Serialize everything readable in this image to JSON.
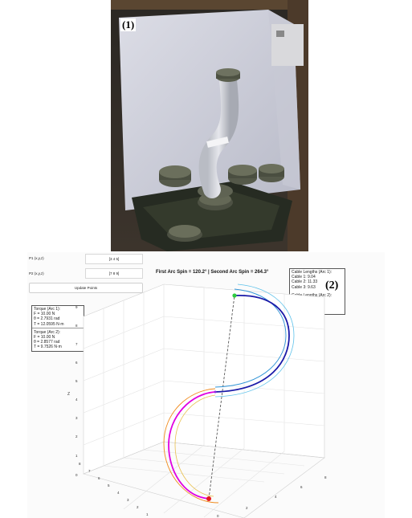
{
  "photo_panel": {
    "label": "(1)"
  },
  "plot_panel": {
    "label": "(2)",
    "inputs": [
      {
        "label": "P1 (x,y,z)",
        "value": "[3 4 5]"
      },
      {
        "label": "P2 (x,y,z)",
        "value": "[7 8 9]"
      }
    ],
    "update_button": "Update Points",
    "title": "First Arc Spin = 120.2°   |   Second Arc Spin = 264.3°",
    "torque_arc1": {
      "heading": "Torque (Arc 1):",
      "lines": [
        "F = 10.00 N",
        "θ = 2.7931 rad",
        "T = 12.0595 N·m"
      ]
    },
    "torque_arc2": {
      "heading": "Torque (Arc 2):",
      "lines": [
        "F = 10.00 N",
        "θ = 2.8577 rad",
        "T = 9.7526 N·m"
      ]
    },
    "cable_arc1": {
      "heading": "Cable Lengths (Arc 1):",
      "lines": [
        "Cable 1: 9.04",
        "Cable 2: 11.33",
        "Cable 3: 9.63"
      ]
    },
    "cable_arc2": {
      "heading": "Cable Lengths (Arc 2):",
      "lines": [
        "Cable 1: 10.76",
        "Cable 2: 8.63",
        "Cable 3: 10.67"
      ]
    },
    "axis": {
      "z_label": "Z",
      "z_ticks": [
        "0",
        "1",
        "2",
        "3",
        "4",
        "5",
        "6",
        "7",
        "8",
        "9"
      ],
      "y_ticks": [
        "1",
        "2",
        "3",
        "4",
        "5",
        "6",
        "7",
        "8"
      ],
      "x_ticks": [
        "0",
        "2",
        "4",
        "6",
        "8"
      ]
    },
    "colors": {
      "arc1_main": "#1a1aa8",
      "arc1_cable_a": "#2d93d6",
      "arc1_cable_b": "#5cc1ea",
      "arc2_main": "#e000e0",
      "arc2_cable_a": "#f08a1c",
      "arc2_cable_b": "#e8c050",
      "start_point": "#e41b1b",
      "end_point": "#2ecc40"
    }
  }
}
